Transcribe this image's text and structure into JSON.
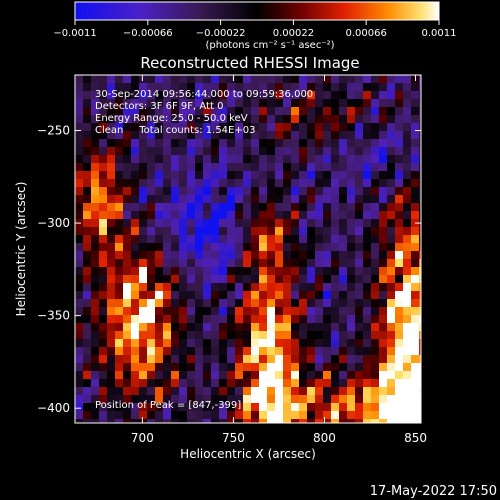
{
  "chart_data": {
    "type": "heatmap",
    "title": "Reconstructed RHESSI Image",
    "xlabel": "Heliocentric X (arcsec)",
    "ylabel": "Heliocentric Y (arcsec)",
    "xlim": [
      663,
      853
    ],
    "ylim": [
      -408,
      -220
    ],
    "x_ticks": [
      700,
      750,
      800,
      850
    ],
    "x_tick_labels": [
      "700",
      "750",
      "800",
      "850"
    ],
    "y_ticks": [
      -250,
      -300,
      -350,
      -400
    ],
    "y_tick_labels": [
      "−250",
      "−300",
      "−350",
      "−400"
    ],
    "colorbar": {
      "range": [
        -0.0011,
        0.0011
      ],
      "tick_values": [
        -0.0011,
        -0.00066,
        -0.00022,
        0.00022,
        0.00066,
        0.0011
      ],
      "tick_labels": [
        "−0.0011",
        "−0.00066",
        "−0.00022",
        "0.00022",
        "0.00066",
        "0.0011"
      ],
      "unit_label": "(photons cm⁻² s⁻¹ asec⁻²)"
    },
    "annotations": [
      "30-Sep-2014 09:56:44.000 to 09:59:36.000",
      "Detectors: 3F 6F 9F, Att 0",
      "Energy Range: 25.0 - 50.0 keV",
      "Clean     Total counts: 1.54E+03"
    ],
    "peak_label": "Position of Peak = [847,-399]",
    "peak": [
      847,
      -399
    ],
    "colormap": [
      "#1010f0",
      "#5020b0",
      "#3a1a50",
      "#000000",
      "#6a0000",
      "#e02000",
      "#ff8a00",
      "#ffe060",
      "#ffffff"
    ]
  },
  "footer": {
    "timestamp": "17-May-2022 17:50"
  }
}
